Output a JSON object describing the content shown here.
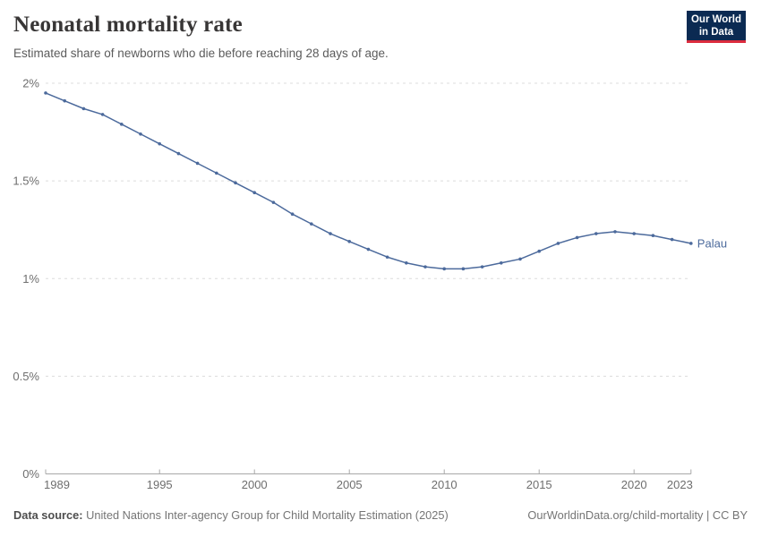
{
  "header": {
    "title": "Neonatal mortality rate",
    "subtitle": "Estimated share of newborns who die before reaching 28 days of age.",
    "logo": {
      "line1": "Our World",
      "line2": "in Data"
    }
  },
  "chart_data": {
    "type": "line",
    "title": "Neonatal mortality rate",
    "xlabel": "",
    "ylabel": "",
    "unit": "%",
    "xlim": [
      1989,
      2023
    ],
    "ylim": [
      0,
      2
    ],
    "grid": "horizontal-dashed",
    "legend_position": "end-of-line-label",
    "xticks": [
      {
        "value": 1989,
        "label": "1989"
      },
      {
        "value": 1995,
        "label": "1995"
      },
      {
        "value": 2000,
        "label": "2000"
      },
      {
        "value": 2005,
        "label": "2005"
      },
      {
        "value": 2010,
        "label": "2010"
      },
      {
        "value": 2015,
        "label": "2015"
      },
      {
        "value": 2020,
        "label": "2020"
      },
      {
        "value": 2023,
        "label": "2023"
      }
    ],
    "yticks": [
      {
        "value": 0,
        "label": "0%"
      },
      {
        "value": 0.5,
        "label": "0.5%"
      },
      {
        "value": 1,
        "label": "1%"
      },
      {
        "value": 1.5,
        "label": "1.5%"
      },
      {
        "value": 2,
        "label": "2%"
      }
    ],
    "x": [
      1989,
      1990,
      1991,
      1992,
      1993,
      1994,
      1995,
      1996,
      1997,
      1998,
      1999,
      2000,
      2001,
      2002,
      2003,
      2004,
      2005,
      2006,
      2007,
      2008,
      2009,
      2010,
      2011,
      2012,
      2013,
      2014,
      2015,
      2016,
      2017,
      2018,
      2019,
      2020,
      2021,
      2022,
      2023
    ],
    "series": [
      {
        "name": "Palau",
        "color": "#4C6A9C",
        "values": [
          1.95,
          1.91,
          1.87,
          1.84,
          1.79,
          1.74,
          1.69,
          1.64,
          1.59,
          1.54,
          1.49,
          1.44,
          1.39,
          1.33,
          1.28,
          1.23,
          1.19,
          1.15,
          1.11,
          1.08,
          1.06,
          1.05,
          1.05,
          1.06,
          1.08,
          1.1,
          1.14,
          1.18,
          1.21,
          1.23,
          1.24,
          1.23,
          1.22,
          1.2,
          1.18
        ]
      }
    ]
  },
  "footer": {
    "source_label": "Data source:",
    "source_text": "United Nations Inter-agency Group for Child Mortality Estimation (2025)",
    "attribution": "OurWorldinData.org/child-mortality | CC BY"
  },
  "colors": {
    "line": "#4C6A9C",
    "grid": "#dcdcdc",
    "axis": "#a8a8a8",
    "tick_label": "#6e6e6e",
    "logo_bg": "#0b2a52",
    "logo_red": "#dc2c3e"
  }
}
